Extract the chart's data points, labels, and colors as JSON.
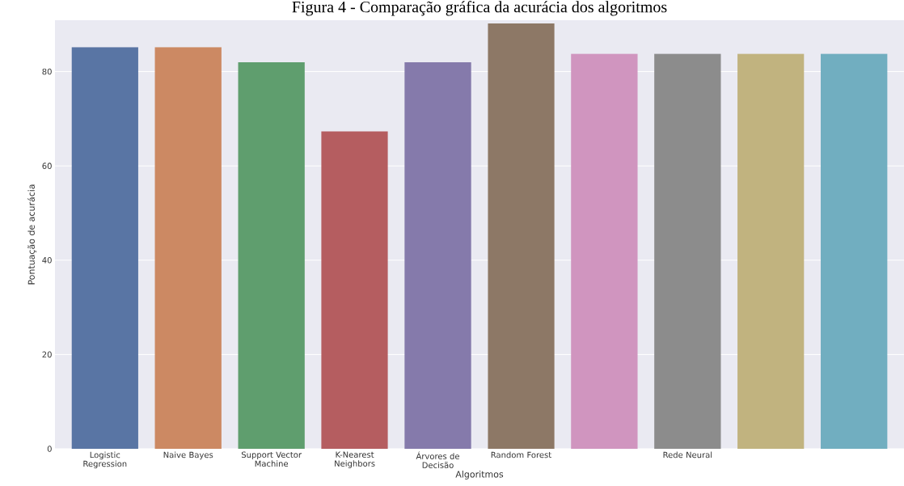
{
  "chart_data": {
    "type": "bar",
    "title": "Figura 4 - Comparação gráfica da acurácia dos algoritmos",
    "xlabel": "Algoritmos",
    "ylabel": "Pontuação de acurácia",
    "categories": [
      "Logistic Regression",
      "Naive Bayes",
      "Support Vector Machine",
      "K-Nearest Neighbors",
      "Árvores de Decisão",
      "Random Forest",
      null,
      "Rede Neural",
      null,
      null
    ],
    "values": [
      85.2,
      85.2,
      82.0,
      67.3,
      82.0,
      90.2,
      83.8,
      83.8,
      83.8,
      83.8
    ],
    "colors": [
      "#5975a4",
      "#cc8963",
      "#5f9e6e",
      "#b55d60",
      "#857aab",
      "#8d7866",
      "#d095bf",
      "#8c8c8c",
      "#c1b37f",
      "#71aec0"
    ],
    "ylim": [
      0,
      90.9
    ],
    "yticks": [
      0,
      20,
      40,
      60,
      80
    ],
    "grid": "y"
  }
}
